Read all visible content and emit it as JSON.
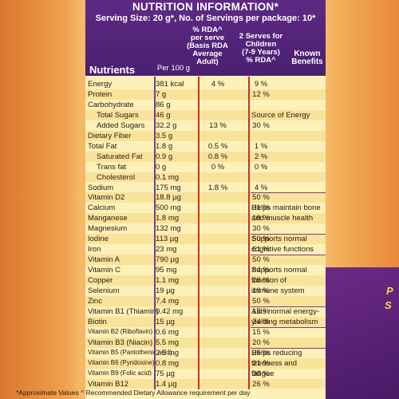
{
  "header": {
    "title": "NUTRITION INFORMATION*",
    "serving": "Serving Size: 20 g*, No. of Servings per package: 10*",
    "col_rda1": [
      "% RDA^",
      "per serve",
      "(Basis RDA",
      "Average",
      "Adult)"
    ],
    "col_rda2": [
      "2 Serves for",
      "Children",
      "(7-9 Years)",
      "% RDA^"
    ],
    "col_benefits": [
      "Known",
      "Benefits"
    ],
    "col_per100": "Per 100 g",
    "col_nutrients": "Nutrients"
  },
  "rows": [
    {
      "name": "Energy",
      "per": "381 kcal",
      "rda1": "4 %",
      "rda2": "9 %"
    },
    {
      "name": "Protein",
      "per": "7 g",
      "rda1": "",
      "rda2": "12 %"
    },
    {
      "name": "Carbohydrate",
      "per": "86 g",
      "rda1": "",
      "rda2": ""
    },
    {
      "name": "Total Sugars",
      "per": "46 g",
      "rda1": "",
      "rda2": "",
      "indent": 1
    },
    {
      "name": "Added Sugars",
      "per": "32.2 g",
      "rda1": "13 %",
      "rda2": "30 %",
      "indent": 1
    },
    {
      "name": "Dietary Fiber",
      "per": "3.5 g",
      "rda1": "",
      "rda2": ""
    },
    {
      "name": "Total Fat",
      "per": "1.8 g",
      "rda1": "0.5 %",
      "rda2": "1 %"
    },
    {
      "name": "Saturated Fat",
      "per": "0.9 g",
      "rda1": "0.8 %",
      "rda2": "2 %",
      "indent": 1
    },
    {
      "name": "Trans fat",
      "per": "0 g",
      "rda1": "0 %",
      "rda2": "0 %",
      "indent": 1
    },
    {
      "name": "Cholesterol",
      "per": "0.1 mg",
      "rda1": "",
      "rda2": "",
      "indent": 1
    },
    {
      "name": "Sodium",
      "per": "175 mg",
      "rda1": "1.8 %",
      "rda2": "4 %"
    },
    {
      "name": "Vitamin D2",
      "per": "18.8 µg",
      "rda1": "",
      "rda2": "50 %"
    },
    {
      "name": "Calcium",
      "per": "500 mg",
      "rda1": "",
      "rda2": "31 %"
    },
    {
      "name": "Manganese",
      "per": "1.8 mg",
      "rda1": "",
      "rda2": "18 %"
    },
    {
      "name": "Magnesium",
      "per": "132 mg",
      "rda1": "",
      "rda2": "30 %"
    },
    {
      "name": "Iodine",
      "per": "113 µg",
      "rda1": "",
      "rda2": "50 %"
    },
    {
      "name": "Iron",
      "per": "23 mg",
      "rda1": "",
      "rda2": "61 %"
    },
    {
      "name": "Vitamin A",
      "per": "790 µg",
      "rda1": "",
      "rda2": "50 %"
    },
    {
      "name": "Vitamin C",
      "per": "95 mg",
      "rda1": "",
      "rda2": "84 %"
    },
    {
      "name": "Copper",
      "per": "1.1 mg",
      "rda1": "",
      "rda2": "26 %"
    },
    {
      "name": "Selenium",
      "per": "19 µg",
      "rda1": "",
      "rda2": "19 %"
    },
    {
      "name": "Zinc",
      "per": "7.4 mg",
      "rda1": "",
      "rda2": "50 %"
    },
    {
      "name": "Vitamin B1 (Thiamin)",
      "per": "0.42 mg",
      "rda1": "",
      "rda2": "15 %"
    },
    {
      "name": "Biotin",
      "per": "15 µg",
      "rda1": "",
      "rda2": "24 %"
    },
    {
      "name": "Vitamin B2 (Riboflavin)",
      "per": "0.6 mg",
      "rda1": "",
      "rda2": "15 %"
    },
    {
      "name": "Vitamin B3 (Niacin)",
      "per": "5.5 mg",
      "rda1": "",
      "rda2": "20 %"
    },
    {
      "name": "Vitamin B5 (Pantothenic acid)",
      "per": "2.5 mg",
      "rda1": "",
      "rda2": "25 %"
    },
    {
      "name": "Vitamin B6 (Pyridoxine)",
      "per": "0.8 mg",
      "rda1": "",
      "rda2": "21 %"
    },
    {
      "name": "Vitamin B9 (Folic acid)",
      "per": "75 µg",
      "rda1": "",
      "rda2": "30 %"
    },
    {
      "name": "Vitamin B12",
      "per": "1.4 µg",
      "rda1": "",
      "rda2": "26 %"
    }
  ],
  "benefits": [
    {
      "text": "Source of Energy",
      "row": 3
    },
    {
      "text": "Helps maintain bone",
      "row": 12
    },
    {
      "text": "and muscle health",
      "row": 13
    },
    {
      "text": "Supports normal",
      "row": 15
    },
    {
      "text": "cognitive functions",
      "row": 16
    },
    {
      "text": "Supports normal",
      "row": 18
    },
    {
      "text": "function of",
      "row": 19
    },
    {
      "text": "immune system",
      "row": 20
    },
    {
      "text": "Aids normal energy-",
      "row": 22
    },
    {
      "text": "yielding metabolism",
      "row": 23
    },
    {
      "text": "Helps reducing",
      "row": 26
    },
    {
      "text": "tiredness and",
      "row": 27
    },
    {
      "text": "fatigue",
      "row": 28
    }
  ],
  "footer": "*Approximate Values   ^ Recommended Dietary Allowance requirement per day",
  "colors": {
    "header": "#4a1f70",
    "panel": "#fdf0b8",
    "stripe": "#f8e39a",
    "divider_red": "#c9302c"
  }
}
